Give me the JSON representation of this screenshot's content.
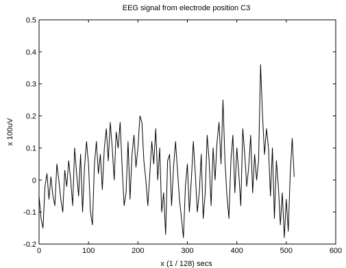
{
  "chart_data": {
    "type": "line",
    "title": "EEG signal from electrode position C3",
    "xlabel": "x (1  / 128) secs",
    "ylabel": "x 100uV",
    "xlim": [
      0,
      600
    ],
    "ylim": [
      -0.2,
      0.5
    ],
    "xticks": [
      0,
      100,
      200,
      300,
      400,
      500,
      600
    ],
    "yticks": [
      -0.2,
      -0.1,
      0,
      0.1,
      0.2,
      0.3,
      0.4,
      0.5
    ],
    "xtick_labels": [
      "0",
      "100",
      "200",
      "300",
      "400",
      "500",
      "600"
    ],
    "ytick_labels": [
      "-0.2",
      "-0.1",
      "0",
      "0.1",
      "0.2",
      "0.3",
      "0.4",
      "0.5"
    ],
    "grid": false,
    "series": [
      {
        "color": "#000000",
        "x": [
          0,
          4,
          8,
          12,
          16,
          20,
          24,
          28,
          32,
          36,
          40,
          44,
          48,
          52,
          56,
          60,
          64,
          68,
          72,
          76,
          80,
          84,
          88,
          92,
          96,
          100,
          104,
          108,
          112,
          116,
          120,
          124,
          128,
          132,
          136,
          140,
          144,
          148,
          152,
          156,
          160,
          164,
          168,
          172,
          176,
          180,
          184,
          188,
          192,
          196,
          200,
          204,
          208,
          212,
          216,
          220,
          224,
          228,
          232,
          236,
          240,
          244,
          248,
          252,
          256,
          260,
          264,
          268,
          272,
          276,
          280,
          284,
          288,
          292,
          296,
          300,
          304,
          308,
          312,
          316,
          320,
          324,
          328,
          332,
          336,
          340,
          344,
          348,
          352,
          356,
          360,
          364,
          368,
          372,
          376,
          380,
          384,
          388,
          392,
          396,
          400,
          404,
          408,
          412,
          416,
          420,
          424,
          428,
          432,
          436,
          440,
          444,
          448,
          452,
          456,
          460,
          464,
          468,
          472,
          476,
          480,
          484,
          488,
          492,
          496,
          500,
          504,
          508,
          512,
          516
        ],
        "y": [
          -0.05,
          -0.12,
          -0.15,
          -0.02,
          0.02,
          -0.06,
          0.01,
          -0.05,
          -0.08,
          0.05,
          0.0,
          -0.06,
          -0.1,
          0.03,
          -0.02,
          0.06,
          0.0,
          -0.08,
          0.1,
          0.02,
          -0.05,
          0.08,
          -0.1,
          0.04,
          0.12,
          0.05,
          -0.1,
          -0.14,
          0.05,
          0.12,
          0.02,
          0.08,
          -0.03,
          0.1,
          0.16,
          0.06,
          0.18,
          0.1,
          0.0,
          0.15,
          0.1,
          0.18,
          0.04,
          -0.08,
          -0.04,
          0.12,
          -0.06,
          0.08,
          0.14,
          0.04,
          0.1,
          0.2,
          0.18,
          0.06,
          0.0,
          -0.08,
          0.02,
          0.12,
          0.05,
          0.16,
          0.0,
          0.1,
          -0.1,
          -0.04,
          -0.17,
          0.06,
          0.08,
          -0.08,
          0.04,
          0.12,
          0.03,
          -0.06,
          -0.12,
          -0.18,
          -0.02,
          0.05,
          -0.1,
          0.0,
          0.12,
          0.02,
          -0.1,
          -0.04,
          0.08,
          -0.12,
          -0.04,
          0.14,
          0.06,
          -0.08,
          0.1,
          0.0,
          0.12,
          0.18,
          0.05,
          0.25,
          0.06,
          -0.05,
          -0.12,
          0.06,
          0.14,
          -0.04,
          0.1,
          0.02,
          -0.08,
          0.16,
          0.08,
          -0.02,
          0.04,
          0.14,
          -0.04,
          0.08,
          0.0,
          0.06,
          0.36,
          0.2,
          0.08,
          0.16,
          0.1,
          -0.05,
          0.1,
          -0.12,
          0.06,
          -0.02,
          -0.14,
          -0.04,
          -0.18,
          -0.06,
          -0.16,
          0.02,
          0.13,
          0.01
        ]
      }
    ]
  }
}
